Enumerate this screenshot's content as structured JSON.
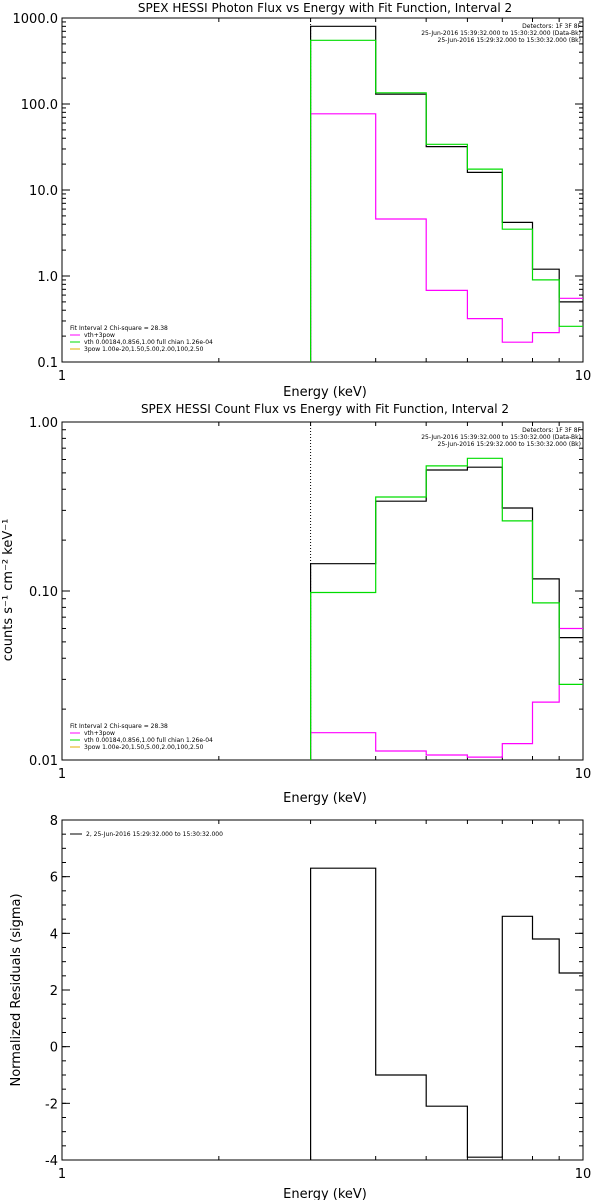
{
  "colors": {
    "data": "#000000",
    "fit_total": "#ff00ff",
    "vth": "#00dd00",
    "ppow": "#e0b000",
    "background": "#ffffff",
    "mark": "#00aa00"
  },
  "chart_data": [
    {
      "type": "line",
      "title": "SPEX HESSI Photon Flux vs Energy with Fit Function, Interval 2",
      "xlabel": "Energy (keV)",
      "ylabel": "",
      "xscale": "log",
      "yscale": "log",
      "xlim": [
        1,
        10
      ],
      "ylim": [
        0.1,
        1000
      ],
      "xticks": [
        "1",
        "10"
      ],
      "yticks": [
        "0.1",
        "1.0",
        "10.0",
        "100.0",
        "1000.0"
      ],
      "ytick_values": [
        0.1,
        1,
        10,
        100,
        1000
      ],
      "edges": [
        3.0,
        3.5,
        4.0,
        4.5,
        5.0,
        5.5,
        6.0,
        6.5,
        7.0,
        7.5,
        8.0,
        8.5,
        9.0,
        10.0
      ],
      "vline": 3.0,
      "series": [
        {
          "name": "data",
          "color_key": "data",
          "values": [
            800,
            800,
            130,
            130,
            32,
            32,
            16,
            16,
            4.2,
            4.2,
            1.2,
            1.2,
            0.5
          ]
        },
        {
          "name": "vth+3pow",
          "color_key": "fit_total",
          "values": [
            77,
            77,
            4.6,
            4.6,
            0.68,
            0.68,
            0.32,
            0.32,
            0.17,
            0.17,
            0.22,
            0.22,
            0.55
          ]
        },
        {
          "name": "vth",
          "color_key": "vth",
          "values": [
            550,
            550,
            135,
            135,
            34,
            34,
            17.5,
            17.5,
            3.5,
            3.5,
            0.9,
            0.9,
            0.26
          ]
        }
      ],
      "legend_top": [
        "Detectors: 1F 3F 8F",
        "25-Jun-2016 15:39:32.000 to 15:30:32.000 (Data-Bk)",
        "25-Jun-2016 15:29:32.000 to 15:30:32.000 (Bk)"
      ],
      "legend_bottom": [
        "Fit Interval 2   Chi-square = 28.38",
        "vth+3pow",
        "vth 0.00184,0.856,1.00  full chian 1.26e-04",
        "3pow 1.00e-20,1.50,5.00,2.00,100,2.50"
      ]
    },
    {
      "type": "line",
      "title": "SPEX HESSI Count Flux vs Energy with Fit Function, Interval 2",
      "xlabel": "Energy (keV)",
      "ylabel": "counts s⁻¹ cm⁻² keV⁻¹",
      "xscale": "log",
      "yscale": "log",
      "xlim": [
        1,
        10
      ],
      "ylim": [
        0.01,
        1
      ],
      "xticks": [
        "1",
        "10"
      ],
      "yticks": [
        "0.01",
        "0.10",
        "1.00"
      ],
      "ytick_values": [
        0.01,
        0.1,
        1
      ],
      "edges": [
        3.0,
        3.5,
        4.0,
        4.5,
        5.0,
        5.5,
        6.0,
        6.5,
        7.0,
        7.5,
        8.0,
        8.5,
        9.0,
        10.0
      ],
      "vline": 3.0,
      "series": [
        {
          "name": "data",
          "color_key": "data",
          "values": [
            0.145,
            0.145,
            0.34,
            0.34,
            0.52,
            0.52,
            0.54,
            0.54,
            0.31,
            0.31,
            0.118,
            0.118,
            0.053
          ]
        },
        {
          "name": "vth+3pow",
          "color_key": "fit_total",
          "values": [
            0.0145,
            0.0145,
            0.0113,
            0.0113,
            0.0107,
            0.0107,
            0.0104,
            0.0104,
            0.0125,
            0.0125,
            0.022,
            0.022,
            0.06
          ]
        },
        {
          "name": "vth",
          "color_key": "vth",
          "values": [
            0.098,
            0.098,
            0.36,
            0.36,
            0.55,
            0.55,
            0.61,
            0.61,
            0.26,
            0.26,
            0.085,
            0.085,
            0.028
          ]
        }
      ],
      "legend_top": [
        "Detectors: 1F 3F 8F",
        "25-Jun-2016 15:39:32.000 to 15:30:32.000 (Data-Bk)",
        "25-Jun-2016 15:29:32.000 to 15:30:32.000 (Bk)"
      ],
      "legend_bottom": [
        "Fit Interval 2   Chi-square = 28.38",
        "vth+3pow",
        "vth 0.00184,0.856,1.00  full chian 1.26e-04",
        "3pow 1.00e-20,1.50,5.00,2.00,100,2.50"
      ]
    },
    {
      "type": "line",
      "title": "",
      "xlabel": "Energy (keV)",
      "ylabel": "Normalized Residuals (sigma)",
      "xscale": "log",
      "yscale": "linear",
      "xlim": [
        1,
        10
      ],
      "ylim": [
        -4,
        8
      ],
      "xticks": [
        "1",
        "10"
      ],
      "yticks": [
        "-4",
        "-2",
        "0",
        "2",
        "4",
        "6",
        "8"
      ],
      "ytick_values": [
        -4,
        -2,
        0,
        2,
        4,
        6,
        8
      ],
      "edges": [
        3.0,
        3.5,
        4.0,
        4.5,
        5.0,
        5.5,
        6.0,
        6.5,
        7.0,
        7.5,
        8.0,
        8.5,
        9.0,
        10.0
      ],
      "series": [
        {
          "name": "2, 25-Jun-2016 15:29:32.000 to 15:30:32.000",
          "color_key": "data",
          "values": [
            6.3,
            6.3,
            -1.0,
            -1.0,
            -2.1,
            -2.1,
            -3.9,
            -3.9,
            4.6,
            4.6,
            3.8,
            3.8,
            2.6
          ]
        }
      ],
      "legend_top": [
        "2, 25-Jun-2016 15:29:32.000 to 15:30:32.000"
      ]
    }
  ]
}
